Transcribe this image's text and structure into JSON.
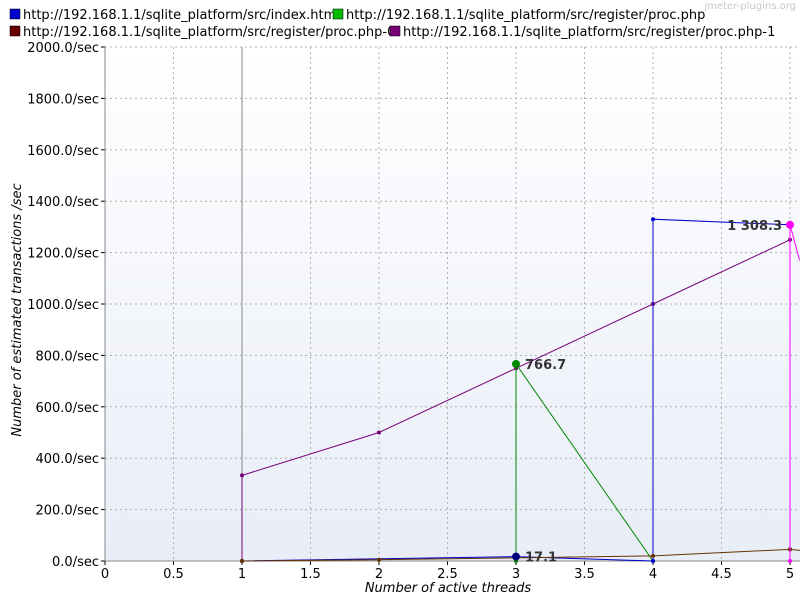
{
  "watermark": "jmeter-plugins.org",
  "chart_data": {
    "type": "line",
    "title": "",
    "xlabel": "Number of active threads",
    "ylabel": "Number of estimated transactions /sec",
    "xlim": [
      0,
      5
    ],
    "ylim": [
      0,
      2000
    ],
    "x_ticks": [
      "0",
      "0.5",
      "1",
      "1.5",
      "2",
      "2.5",
      "3",
      "3.5",
      "4",
      "4.5",
      "5"
    ],
    "y_ticks": [
      "0.0/sec",
      "200.0/sec",
      "400.0/sec",
      "600.0/sec",
      "800.0/sec",
      "1000.0/sec",
      "1200.0/sec",
      "1400.0/sec",
      "1600.0/sec",
      "1800.0/sec",
      "2000.0/sec"
    ],
    "grid": true,
    "legend_position": "top",
    "series": [
      {
        "name": "http://192.168.1.1/sqlite_platform/src/index.html",
        "color": "#0000cc",
        "points": [
          [
            1,
            2000
          ],
          [
            1,
            0
          ],
          [
            3,
            17.1
          ],
          [
            4,
            0
          ],
          [
            4,
            1330
          ],
          [
            5,
            1308.3
          ]
        ]
      },
      {
        "name": "http://192.168.1.1/sqlite_platform/src/register/proc.php",
        "color": "#00bb00",
        "line_color": "#008800",
        "points": [
          [
            3,
            0
          ],
          [
            3,
            766.7
          ],
          [
            4,
            0
          ]
        ]
      },
      {
        "name": "http://192.168.1.1/sqlite_platform/src/register/proc.php-0",
        "color": "#660000",
        "line_color": "#663300",
        "points": [
          [
            1,
            0
          ],
          [
            2,
            5
          ],
          [
            3,
            12
          ],
          [
            4,
            20
          ],
          [
            5,
            45
          ],
          [
            5.1,
            40
          ]
        ]
      },
      {
        "name": "http://192.168.1.1/sqlite_platform/src/register/proc.php-1",
        "color": "#770077",
        "points": [
          [
            1,
            0
          ],
          [
            1,
            333
          ],
          [
            2,
            500
          ],
          [
            3,
            750
          ],
          [
            4,
            1000
          ],
          [
            5,
            1250
          ],
          [
            5,
            45
          ]
        ]
      }
    ],
    "magenta_series": {
      "color": "#ff00ff",
      "points": [
        [
          5,
          0
        ],
        [
          5,
          1308.3
        ],
        [
          5.07,
          1170
        ]
      ]
    },
    "annotations": [
      {
        "text": "766.7",
        "x": 3,
        "y": 766.7,
        "color": "#008800"
      },
      {
        "text": "17.1",
        "x": 3,
        "y": 17.1,
        "color": "#000080"
      },
      {
        "text": "1 308.3",
        "x": 5,
        "y": 1308.3,
        "color": "#ff00ff"
      }
    ]
  }
}
